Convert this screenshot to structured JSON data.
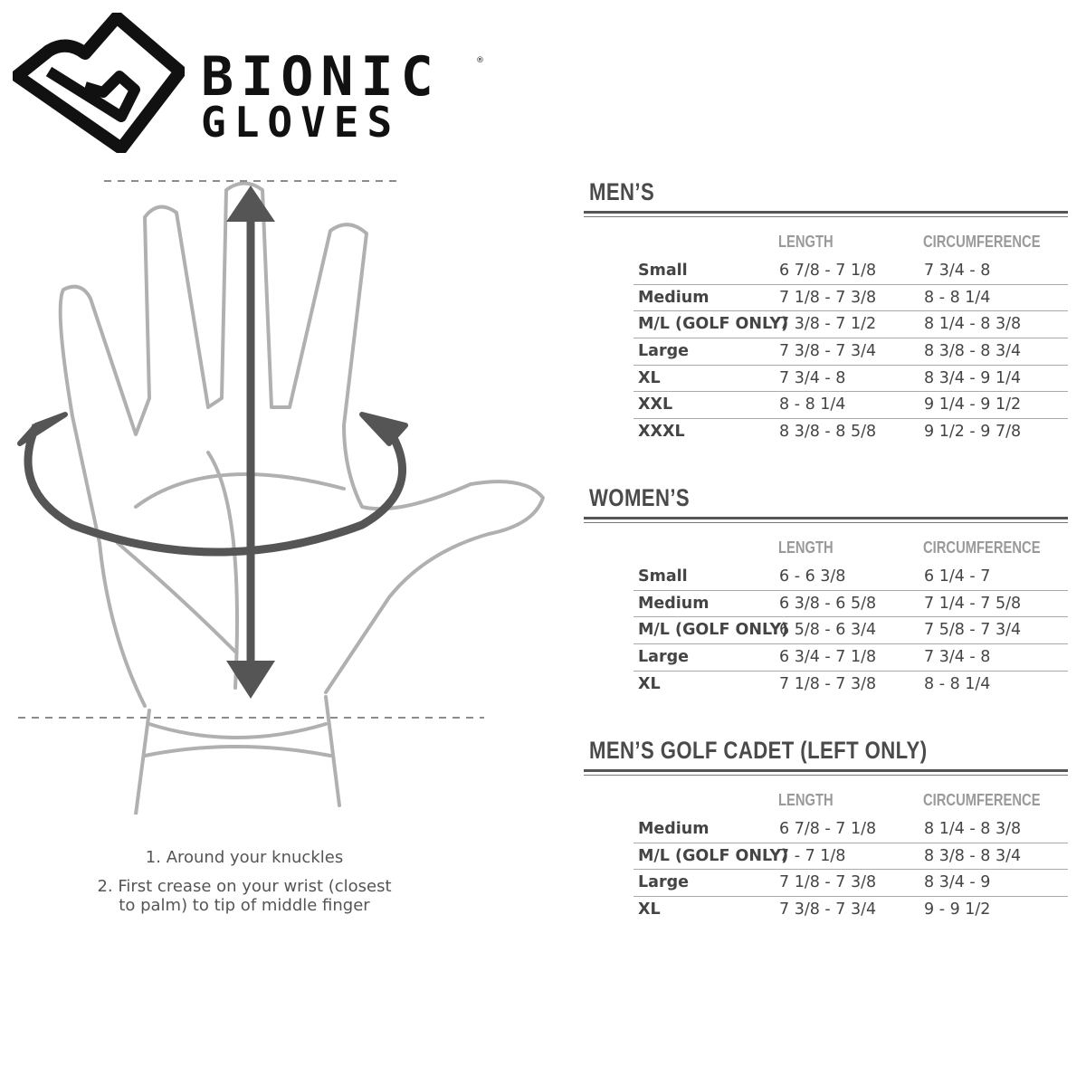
{
  "brand": {
    "line1": "BIONIC",
    "line2": "GLOVES",
    "registered": "®"
  },
  "instructions": {
    "step1": "1. Around your knuckles",
    "step2": "2. First crease on your wrist (closest to palm) to tip of middle finger"
  },
  "columns": {
    "length": "LENGTH",
    "circumference": "CIRCUMFERENCE"
  },
  "sections": [
    {
      "title": "MEN’S",
      "rows": [
        {
          "size": "Small",
          "note": "",
          "length": "6 7/8 - 7 1/8",
          "circumference": "7 3/4 - 8"
        },
        {
          "size": "Medium",
          "note": "",
          "length": "7 1/8 - 7 3/8",
          "circumference": "8 - 8 1/4"
        },
        {
          "size": "M/L (",
          "note": "GOLF ONLY)",
          "length": "7 3/8 - 7 1/2",
          "circumference": "8 1/4 - 8 3/8"
        },
        {
          "size": "Large",
          "note": "",
          "length": "7 3/8 - 7 3/4",
          "circumference": "8 3/8 - 8 3/4"
        },
        {
          "size": "XL",
          "note": "",
          "length": "7 3/4 - 8",
          "circumference": "8 3/4 - 9 1/4"
        },
        {
          "size": "XXL",
          "note": "",
          "length": "8 - 8 1/4",
          "circumference": "9 1/4 - 9 1/2"
        },
        {
          "size": "XXXL",
          "note": "",
          "length": "8 3/8 - 8 5/8",
          "circumference": "9 1/2 - 9 7/8"
        }
      ]
    },
    {
      "title": "WOMEN’S",
      "rows": [
        {
          "size": "Small",
          "note": "",
          "length": "6 - 6 3/8",
          "circumference": "6 1/4 - 7"
        },
        {
          "size": "Medium",
          "note": "",
          "length": "6 3/8 - 6 5/8",
          "circumference": "7 1/4 - 7 5/8"
        },
        {
          "size": "M/L (",
          "note": "GOLF ONLY)",
          "length": "6 5/8 - 6 3/4",
          "circumference": "7 5/8 - 7 3/4"
        },
        {
          "size": "Large",
          "note": "",
          "length": "6 3/4 - 7 1/8",
          "circumference": "7 3/4 - 8"
        },
        {
          "size": "XL",
          "note": "",
          "length": "7 1/8 - 7 3/8",
          "circumference": "8 - 8 1/4"
        }
      ]
    },
    {
      "title": "MEN’S GOLF CADET (LEFT ONLY)",
      "rows": [
        {
          "size": "Medium",
          "note": "",
          "length": "6 7/8 - 7 1/8",
          "circumference": "8 1/4 - 8 3/8"
        },
        {
          "size": "M/L (",
          "note": "GOLF ONLY)",
          "length": "7 - 7 1/8",
          "circumference": "8 3/8 - 8 3/4"
        },
        {
          "size": "Large",
          "note": "",
          "length": "7 1/8 - 7 3/8",
          "circumference": "8 3/4 - 9"
        },
        {
          "size": "XL",
          "note": "",
          "length": "7 3/8 - 7 3/4",
          "circumference": "9 - 9 1/2"
        }
      ]
    }
  ],
  "colors": {
    "arrow": "#555555",
    "hand_outline": "#b0b0b0",
    "title": "#4a4a4a",
    "header": "#9a9a9a"
  }
}
